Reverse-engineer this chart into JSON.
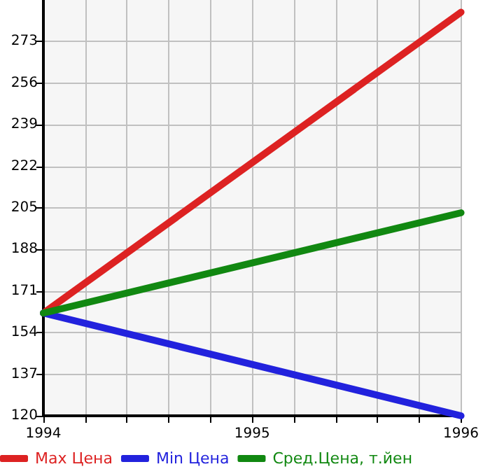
{
  "chart_data": {
    "type": "line",
    "x": [
      1994,
      1996
    ],
    "series": [
      {
        "name": "Max Цена",
        "color": "#dd2222",
        "values": [
          162,
          285
        ]
      },
      {
        "name": "Min Цена",
        "color": "#2222dd",
        "values": [
          162,
          120
        ]
      },
      {
        "name": "Сред.Цена, т.йен",
        "color": "#118811",
        "values": [
          162,
          203
        ]
      }
    ],
    "xlim": [
      1994,
      1996
    ],
    "xticks": [
      1994,
      {
        "value": 1994.2,
        "label": null
      },
      {
        "value": 1994.4,
        "label": null
      },
      {
        "value": 1994.6,
        "label": null
      },
      {
        "value": 1994.8,
        "label": null
      },
      1995,
      {
        "value": 1995.2,
        "label": null
      },
      {
        "value": 1995.4,
        "label": null
      },
      {
        "value": 1995.6,
        "label": null
      },
      {
        "value": 1995.8,
        "label": null
      },
      1996
    ],
    "ylim": [
      120,
      290
    ],
    "yticks": [
      120,
      137,
      154,
      171,
      188,
      205,
      222,
      239,
      256,
      273
    ],
    "grid": true,
    "legend": "bottom left",
    "marker": "none",
    "line_style": "solid"
  }
}
